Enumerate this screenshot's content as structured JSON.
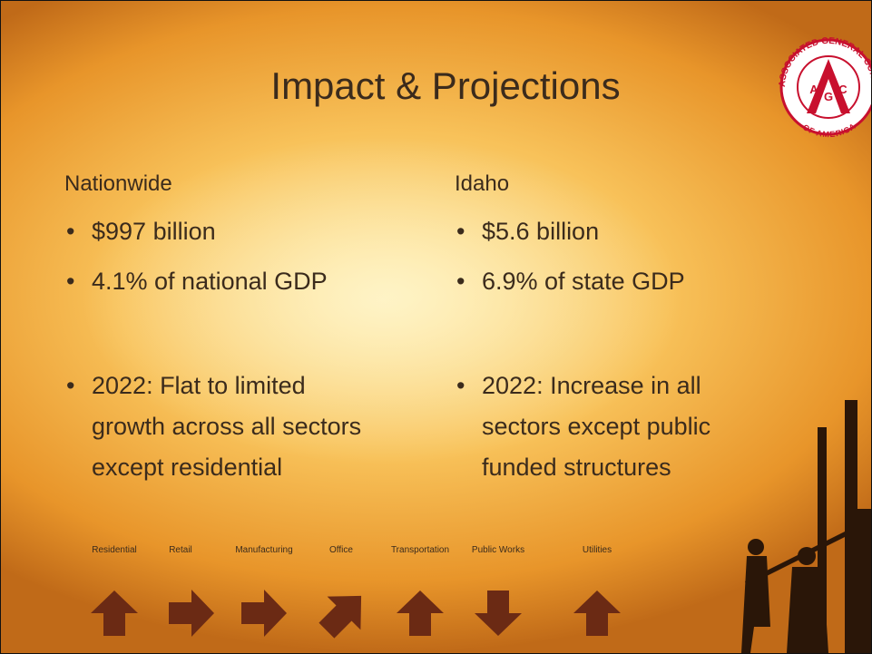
{
  "title": "Impact & Projections",
  "logo": {
    "ring_top": "ASSOCIATED GENERAL CONTRACTORS",
    "ring_bottom": "OF AMERICA",
    "letters": [
      "A",
      "G",
      "C"
    ]
  },
  "columns": [
    {
      "heading": "Nationwide",
      "bullets": [
        "$997 billion",
        "4.1% of national GDP"
      ],
      "outlook": "2022: Flat to limited growth across all sectors except residential"
    },
    {
      "heading": "Idaho",
      "bullets": [
        "$5.6 billion",
        "6.9% of state GDP"
      ],
      "outlook": "2022: Increase in all sectors except public funded structures"
    }
  ],
  "sectors": [
    "Residential",
    "Retail",
    "Manufacturing",
    "Office",
    "Transportation",
    "Public Works",
    "Utilities"
  ]
}
